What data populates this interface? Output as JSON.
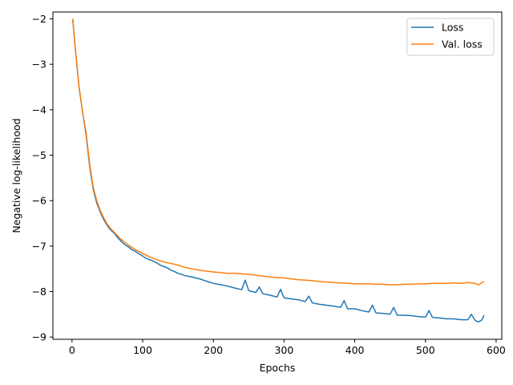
{
  "chart_data": {
    "type": "line",
    "title": "",
    "xlabel": "Epochs",
    "ylabel": "Negative log-likelihood",
    "xlim": [
      -27,
      608
    ],
    "ylim": [
      -9.05,
      -1.85
    ],
    "xticks": [
      0,
      100,
      200,
      300,
      400,
      500,
      600
    ],
    "xtick_labels": [
      "0",
      "100",
      "200",
      "300",
      "400",
      "500",
      "600"
    ],
    "yticks": [
      -2,
      -3,
      -4,
      -5,
      -6,
      -7,
      -8,
      -9
    ],
    "ytick_labels": [
      "−2",
      "−3",
      "−4",
      "−5",
      "−6",
      "−7",
      "−8",
      "−9"
    ],
    "grid": false,
    "legend_position": "top-right",
    "series": [
      {
        "name": "Loss",
        "color": "#1f77b4",
        "x": [
          1,
          5,
          10,
          15,
          20,
          25,
          30,
          35,
          40,
          45,
          50,
          55,
          60,
          65,
          70,
          75,
          80,
          85,
          90,
          95,
          100,
          105,
          110,
          115,
          120,
          125,
          130,
          135,
          140,
          145,
          150,
          155,
          160,
          170,
          180,
          190,
          200,
          210,
          220,
          230,
          240,
          245,
          250,
          260,
          265,
          270,
          280,
          290,
          295,
          300,
          310,
          320,
          330,
          335,
          340,
          350,
          360,
          370,
          380,
          385,
          390,
          400,
          410,
          420,
          425,
          430,
          440,
          450,
          455,
          460,
          470,
          480,
          490,
          500,
          505,
          510,
          520,
          530,
          540,
          550,
          560,
          565,
          570,
          575,
          580,
          583
        ],
        "y": [
          -2.0,
          -2.7,
          -3.5,
          -4.05,
          -4.55,
          -5.25,
          -5.75,
          -6.05,
          -6.25,
          -6.42,
          -6.55,
          -6.65,
          -6.72,
          -6.82,
          -6.9,
          -6.97,
          -7.02,
          -7.08,
          -7.12,
          -7.17,
          -7.22,
          -7.27,
          -7.3,
          -7.33,
          -7.37,
          -7.42,
          -7.45,
          -7.48,
          -7.53,
          -7.56,
          -7.6,
          -7.62,
          -7.65,
          -7.68,
          -7.72,
          -7.77,
          -7.82,
          -7.85,
          -7.88,
          -7.92,
          -7.96,
          -7.75,
          -7.98,
          -8.02,
          -7.9,
          -8.05,
          -8.08,
          -8.12,
          -7.95,
          -8.14,
          -8.16,
          -8.18,
          -8.22,
          -8.1,
          -8.25,
          -8.28,
          -8.3,
          -8.32,
          -8.35,
          -8.2,
          -8.38,
          -8.38,
          -8.42,
          -8.45,
          -8.3,
          -8.47,
          -8.48,
          -8.5,
          -8.35,
          -8.52,
          -8.52,
          -8.53,
          -8.55,
          -8.56,
          -8.42,
          -8.57,
          -8.58,
          -8.6,
          -8.6,
          -8.62,
          -8.62,
          -8.5,
          -8.63,
          -8.67,
          -8.62,
          -8.52
        ]
      },
      {
        "name": "Val. loss",
        "color": "#ff7f0e",
        "x": [
          1,
          5,
          10,
          15,
          20,
          25,
          30,
          35,
          40,
          45,
          50,
          55,
          60,
          65,
          70,
          75,
          80,
          85,
          90,
          95,
          100,
          110,
          120,
          130,
          140,
          150,
          160,
          170,
          180,
          190,
          200,
          210,
          220,
          230,
          240,
          250,
          260,
          270,
          280,
          290,
          300,
          310,
          320,
          330,
          340,
          350,
          360,
          370,
          380,
          390,
          400,
          410,
          420,
          430,
          440,
          450,
          460,
          470,
          480,
          490,
          500,
          510,
          520,
          530,
          540,
          550,
          560,
          570,
          575,
          580,
          583
        ],
        "y": [
          -2.0,
          -2.7,
          -3.5,
          -4.05,
          -4.5,
          -5.2,
          -5.7,
          -6.0,
          -6.22,
          -6.38,
          -6.52,
          -6.62,
          -6.7,
          -6.78,
          -6.86,
          -6.92,
          -6.98,
          -7.03,
          -7.08,
          -7.12,
          -7.16,
          -7.24,
          -7.3,
          -7.35,
          -7.38,
          -7.42,
          -7.47,
          -7.5,
          -7.53,
          -7.55,
          -7.57,
          -7.58,
          -7.6,
          -7.6,
          -7.61,
          -7.62,
          -7.64,
          -7.66,
          -7.68,
          -7.69,
          -7.7,
          -7.72,
          -7.74,
          -7.75,
          -7.76,
          -7.78,
          -7.79,
          -7.8,
          -7.81,
          -7.82,
          -7.83,
          -7.83,
          -7.83,
          -7.84,
          -7.84,
          -7.85,
          -7.85,
          -7.84,
          -7.84,
          -7.83,
          -7.83,
          -7.82,
          -7.82,
          -7.82,
          -7.81,
          -7.82,
          -7.8,
          -7.82,
          -7.85,
          -7.8,
          -7.78
        ]
      }
    ]
  }
}
